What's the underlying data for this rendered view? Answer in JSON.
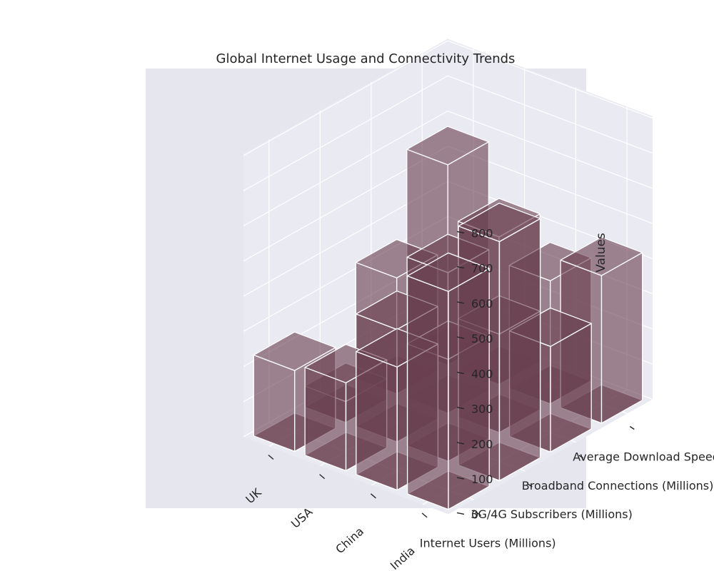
{
  "chart_data": {
    "type": "bar3d",
    "title": "Global Internet Usage and Connectivity Trends",
    "zlabel": "Values",
    "categories": [
      "UK",
      "USA",
      "China",
      "India"
    ],
    "series_names": [
      "Internet Users (Millions)",
      "3G/4G Subscribers (Millions)",
      "Broadband Connections (Millions)",
      "Average Download Speed (Mbps)"
    ],
    "values": [
      [
        230,
        60,
        330,
        570
      ],
      [
        250,
        320,
        400,
        420
      ],
      [
        350,
        290,
        280,
        350
      ],
      [
        620,
        680,
        300,
        420
      ]
    ],
    "zticks": [
      0,
      100,
      200,
      300,
      400,
      500,
      600,
      700,
      800
    ],
    "zlim": [
      0,
      800
    ],
    "bar_color": "#6b4150",
    "bar_opacity": 0.62,
    "pane_color": "#eaeaf2",
    "background_color": "#e6e6ef"
  }
}
